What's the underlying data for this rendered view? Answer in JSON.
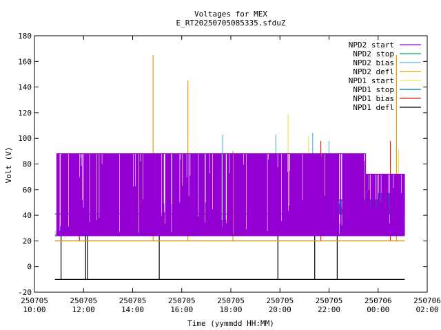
{
  "chart_data": {
    "type": "line",
    "title": "Voltages for MEX",
    "subtitle": "E_RT20250705085335.sfduZ",
    "xlabel": "Time (yymmdd HH:MM)",
    "ylabel": "Volt (V)",
    "ylim": [
      -20,
      180
    ],
    "yticks": [
      -20,
      0,
      20,
      40,
      60,
      80,
      100,
      120,
      140,
      160,
      180
    ],
    "xlim": [
      "2025-07-05 10:00",
      "2025-07-06 02:00"
    ],
    "xticks": [
      {
        "date": "250705",
        "time": "10:00"
      },
      {
        "date": "250705",
        "time": "12:00"
      },
      {
        "date": "250705",
        "time": "14:00"
      },
      {
        "date": "250705",
        "time": "16:00"
      },
      {
        "date": "250705",
        "time": "18:00"
      },
      {
        "date": "250705",
        "time": "20:00"
      },
      {
        "date": "250705",
        "time": "22:00"
      },
      {
        "date": "250706",
        "time": "00:00"
      },
      {
        "date": "250706",
        "time": "02:00"
      }
    ],
    "grid": false,
    "legend_position": "top-right",
    "data_start": "2025-07-05 10:50",
    "data_end": "2025-07-06 01:05",
    "series": [
      {
        "name": "NPD2 start",
        "color": "#9400d3",
        "base": 24,
        "levels": [
          [
            10.9,
            88
          ],
          [
            23.5,
            72
          ]
        ],
        "dense": true
      },
      {
        "name": "NPD2 stop",
        "color": "#009e73",
        "base": 25,
        "levels": [],
        "dense": false
      },
      {
        "name": "NPD2 bias",
        "color": "#56b4e9",
        "base": 27,
        "levels": [],
        "dense": false,
        "spikes": [
          [
            "2025-07-05 17:40",
            103
          ],
          [
            "2025-07-05 19:50",
            103
          ],
          [
            "2025-07-05 21:20",
            104
          ],
          [
            "2025-07-05 22:00",
            98
          ]
        ]
      },
      {
        "name": "NPD2 defl",
        "color": "#e69f00",
        "base": 20,
        "levels": [],
        "dense": false,
        "spikes": [
          [
            "2025-07-05 14:50",
            165
          ],
          [
            "2025-07-05 16:15",
            145
          ],
          [
            "2025-07-05 18:05",
            90
          ],
          [
            "2025-07-06 00:45",
            165
          ]
        ]
      },
      {
        "name": "NPD1 start",
        "color": "#f0e442",
        "base": 26,
        "levels": [],
        "dense": false,
        "spikes": [
          [
            "2025-07-05 20:20",
            119
          ],
          [
            "2025-07-05 21:10",
            102
          ],
          [
            "2025-07-06 00:50",
            91
          ]
        ]
      },
      {
        "name": "NPD1 stop",
        "color": "#0072b2",
        "base": 41,
        "levels": [
          [
            22.0,
            52
          ],
          [
            24.0,
            57
          ]
        ],
        "dense": true
      },
      {
        "name": "NPD1 bias",
        "color": "#e51e10",
        "base": 20,
        "levels": [],
        "dense": false,
        "spikes": [
          [
            "2025-07-05 11:50",
            70
          ],
          [
            "2025-07-05 21:40",
            98
          ],
          [
            "2025-07-06 00:30",
            98
          ]
        ]
      },
      {
        "name": "NPD1 defl",
        "color": "#000000",
        "base": -10,
        "levels": [],
        "dense": false,
        "spikes": [
          [
            "2025-07-05 11:05",
            52
          ],
          [
            "2025-07-05 12:05",
            62
          ],
          [
            "2025-07-05 12:10",
            60
          ],
          [
            "2025-07-05 15:05",
            52
          ],
          [
            "2025-07-05 19:55",
            74
          ],
          [
            "2025-07-05 21:25",
            70
          ],
          [
            "2025-07-05 22:20",
            75
          ]
        ]
      }
    ]
  }
}
